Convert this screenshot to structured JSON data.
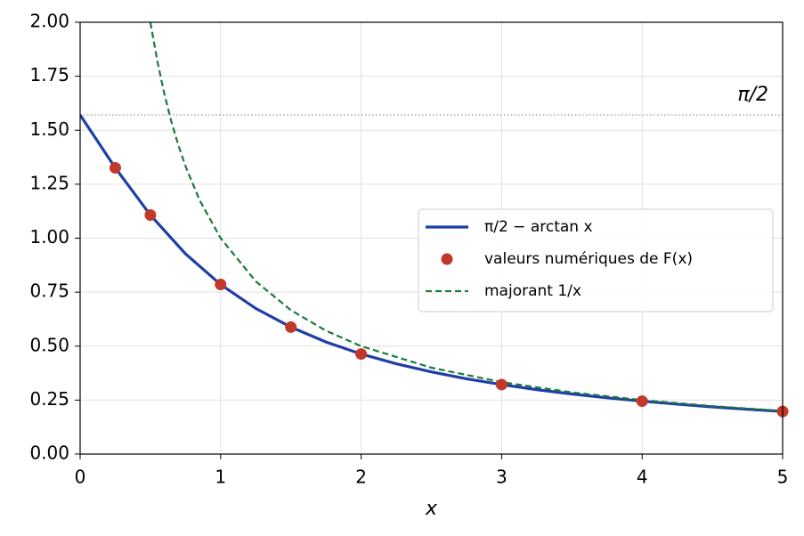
{
  "chart_data": {
    "type": "line",
    "xlabel": "x",
    "xlim": [
      0,
      5
    ],
    "ylim": [
      0,
      2
    ],
    "xticks": [
      0,
      1,
      2,
      3,
      4,
      5
    ],
    "yticks": [
      {
        "value": 0,
        "label": "0.00"
      },
      {
        "value": 0.25,
        "label": "0.25"
      },
      {
        "value": 0.5,
        "label": "0.50"
      },
      {
        "value": 0.75,
        "label": "0.75"
      },
      {
        "value": 1,
        "label": "1.00"
      },
      {
        "value": 1.25,
        "label": "1.25"
      },
      {
        "value": 1.5,
        "label": "1.50"
      },
      {
        "value": 1.75,
        "label": "1.75"
      },
      {
        "value": 2,
        "label": "2.00"
      }
    ],
    "grid": true,
    "legend": "center right",
    "hline": {
      "value": 1.5708,
      "label": "π/2",
      "color": "#888888"
    },
    "series": [
      {
        "name": "π/2 − arctan x",
        "color": "#1f3ea8",
        "style": "solid",
        "x": [
          0,
          0.25,
          0.5,
          0.75,
          1,
          1.25,
          1.5,
          1.75,
          2,
          2.25,
          2.5,
          2.75,
          3,
          3.25,
          3.5,
          3.75,
          4,
          4.25,
          4.5,
          4.75,
          5
        ],
        "values": [
          1.5708,
          1.3258,
          1.1071,
          0.9273,
          0.7854,
          0.6747,
          0.588,
          0.5191,
          0.4636,
          0.4182,
          0.3805,
          0.3488,
          0.3218,
          0.2985,
          0.2783,
          0.2606,
          0.245,
          0.2311,
          0.2187,
          0.2075,
          0.1974
        ]
      },
      {
        "name": "valeurs numériques de F(x)",
        "color": "#c0392b",
        "style": "markers",
        "x": [
          0.25,
          0.5,
          1,
          1.5,
          2,
          3,
          4,
          5
        ],
        "values": [
          1.3258,
          1.1071,
          0.7854,
          0.588,
          0.4636,
          0.3218,
          0.245,
          0.1974
        ]
      },
      {
        "name": "majorant 1/x",
        "color": "#1a7a3a",
        "style": "dashed",
        "x": [
          0.5,
          0.55,
          0.6,
          0.65,
          0.7,
          0.75,
          0.85,
          1,
          1.25,
          1.5,
          1.75,
          2,
          2.5,
          3,
          3.5,
          4,
          4.5,
          5
        ],
        "values": [
          2,
          1.8182,
          1.6667,
          1.5385,
          1.4286,
          1.3333,
          1.1765,
          1,
          0.8,
          0.6667,
          0.5714,
          0.5,
          0.4,
          0.3333,
          0.2857,
          0.25,
          0.2222,
          0.2
        ]
      }
    ]
  }
}
